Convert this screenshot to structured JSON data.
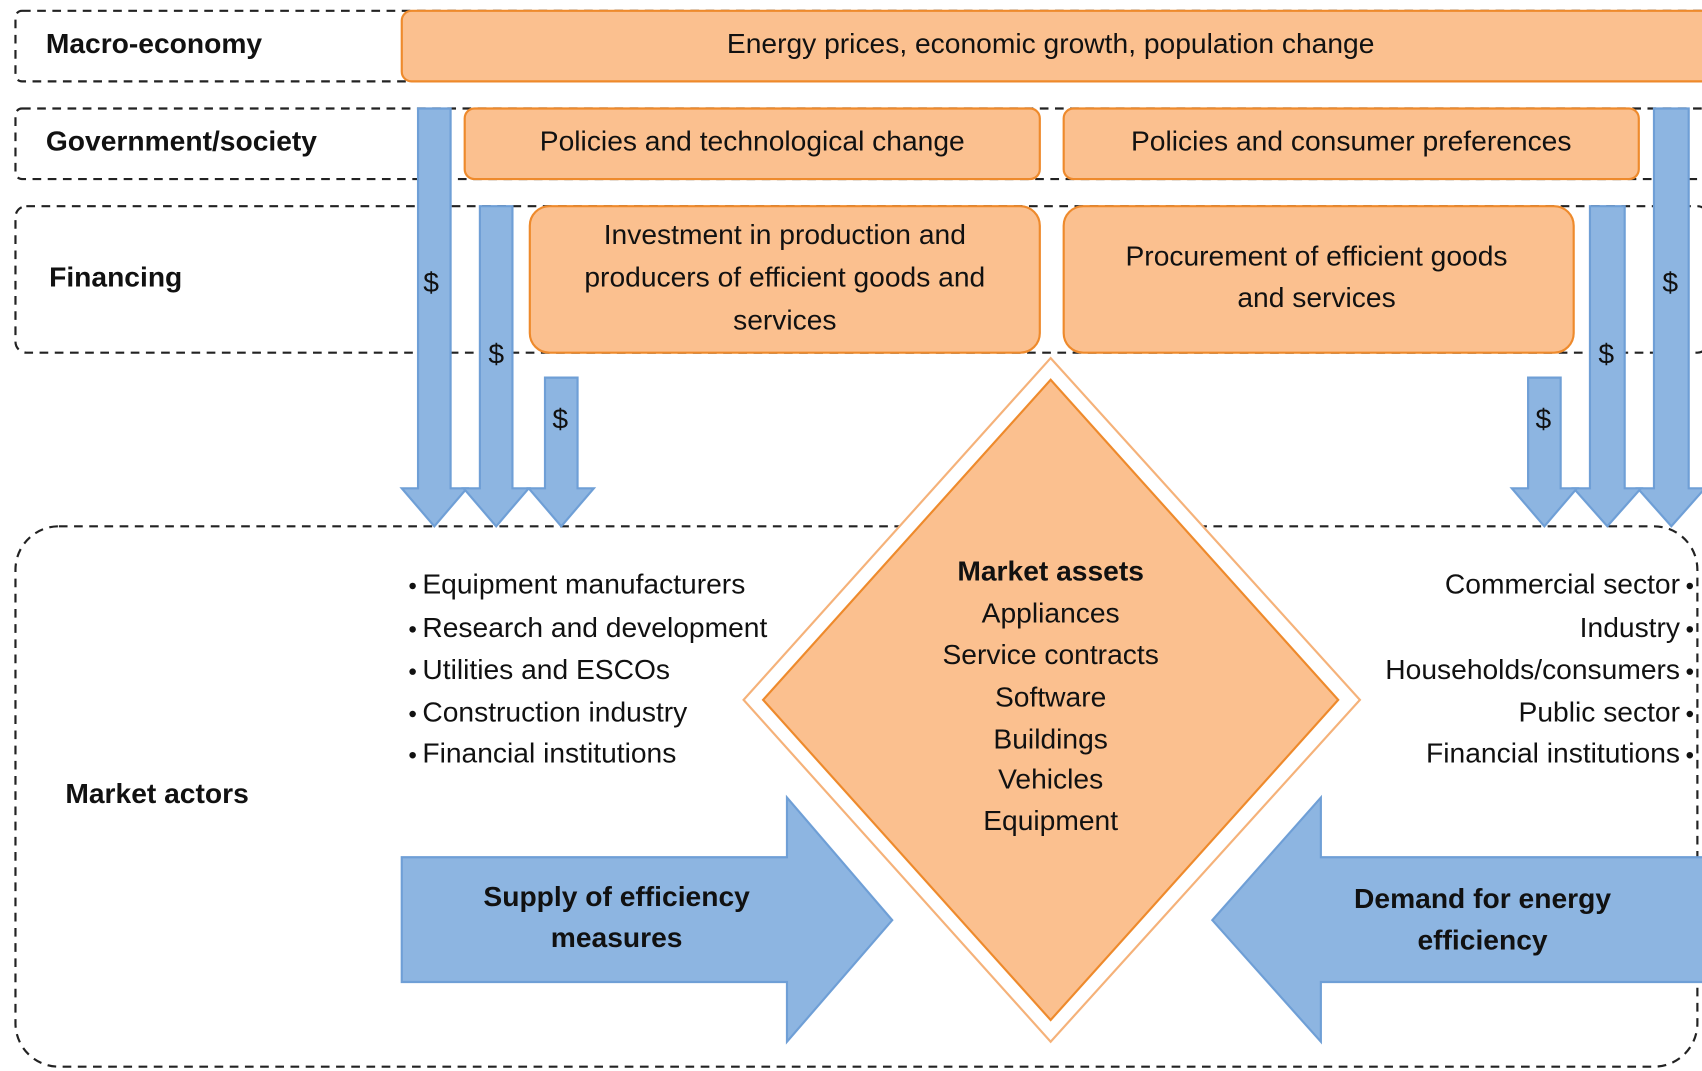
{
  "rows": [
    "Macro-economy",
    "Government/society",
    "Financing",
    "Market actors"
  ],
  "macro_box": "Energy prices, economic growth, population change",
  "government_boxes": [
    "Policies and technological change",
    "Policies and consumer preferences"
  ],
  "financing_boxes": [
    {
      "lines": [
        "Investment in production and",
        "producers of efficient goods and",
        "services"
      ]
    },
    {
      "lines": [
        "Procurement of efficient goods",
        "and services"
      ]
    }
  ],
  "dollar_labels": [
    "$",
    "$",
    "$",
    "$",
    "$",
    "$"
  ],
  "market_assets": {
    "title": "Market assets",
    "items": [
      "Appliances",
      "Service contracts",
      "Software",
      "Buildings",
      "Vehicles",
      "Equipment"
    ]
  },
  "supply_actors": [
    "Equipment manufacturers",
    "Research and development",
    "Utilities and ESCOs",
    "Construction industry",
    "Financial institutions"
  ],
  "demand_actors": [
    "Commercial sector",
    "Industry",
    "Households/consumers",
    "Public sector",
    "Financial institutions"
  ],
  "supply_arrow": [
    "Supply of efficiency",
    "measures"
  ],
  "demand_arrow": [
    "Demand for energy",
    "efficiency"
  ]
}
